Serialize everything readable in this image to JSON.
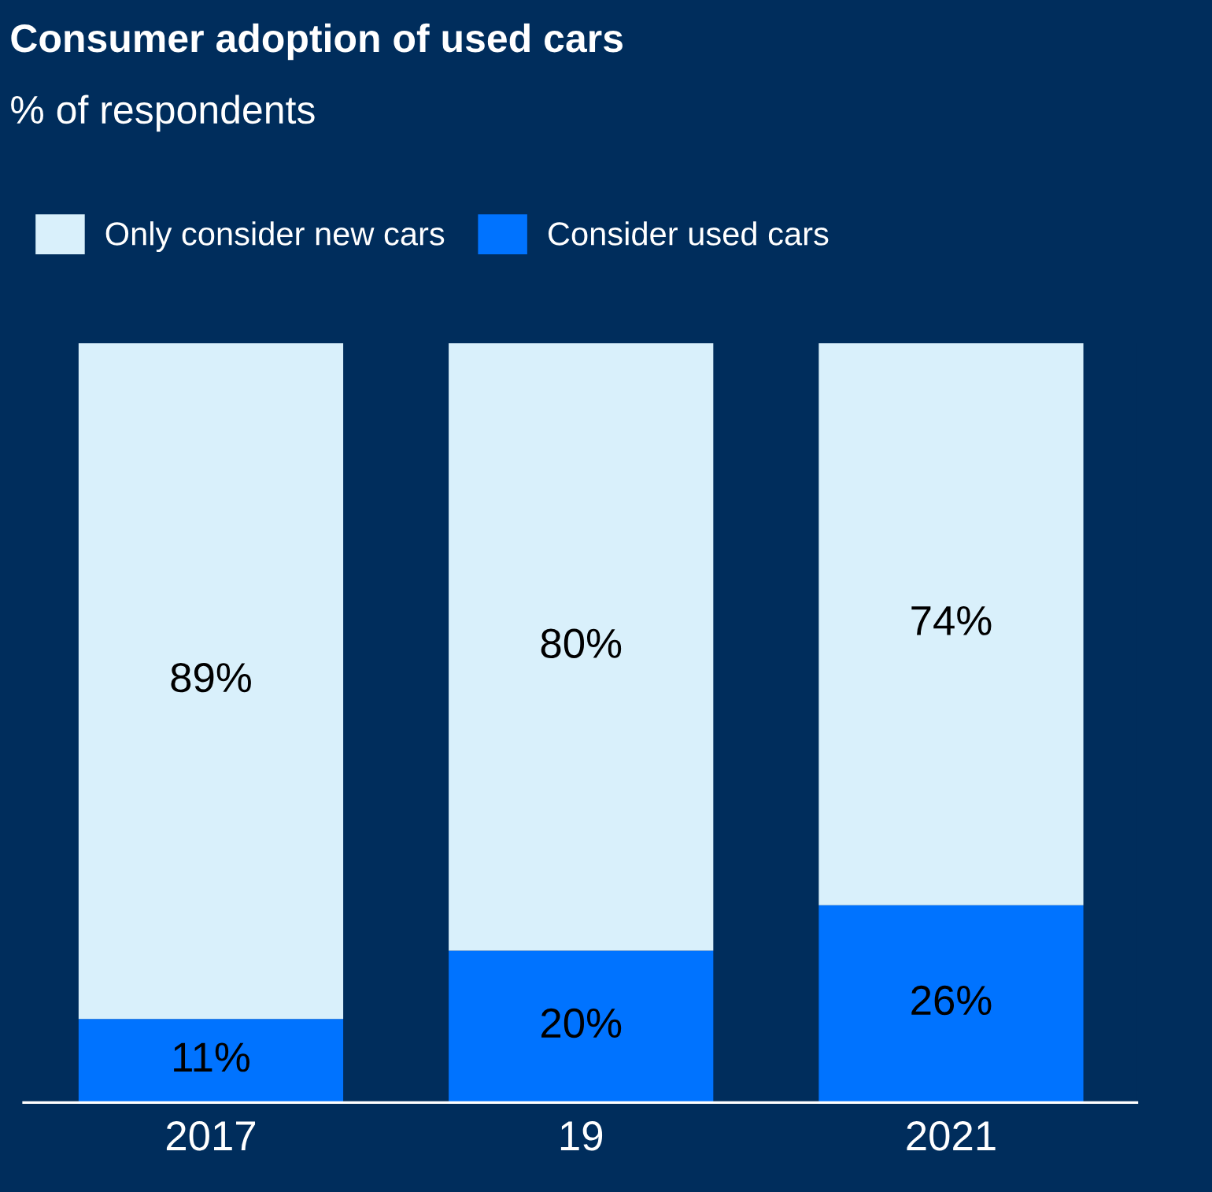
{
  "chart_data": {
    "type": "bar",
    "title": "Consumer adoption of used cars",
    "subtitle": "% of respondents",
    "categories": [
      "2017",
      "19",
      "2021"
    ],
    "stacked": true,
    "ylim": [
      0,
      100
    ],
    "legend": "top left",
    "tick_labels": "x",
    "series": [
      {
        "name": "Consider used cars",
        "color": "#0073ff",
        "values": [
          11,
          20,
          26
        ],
        "value_labels": [
          "11%",
          "20%",
          "26%"
        ]
      },
      {
        "name": "Only consider new cars",
        "color": "#d9f0fb",
        "values": [
          89,
          80,
          74
        ],
        "value_labels": [
          "89%",
          "80%",
          "74%"
        ]
      }
    ]
  }
}
